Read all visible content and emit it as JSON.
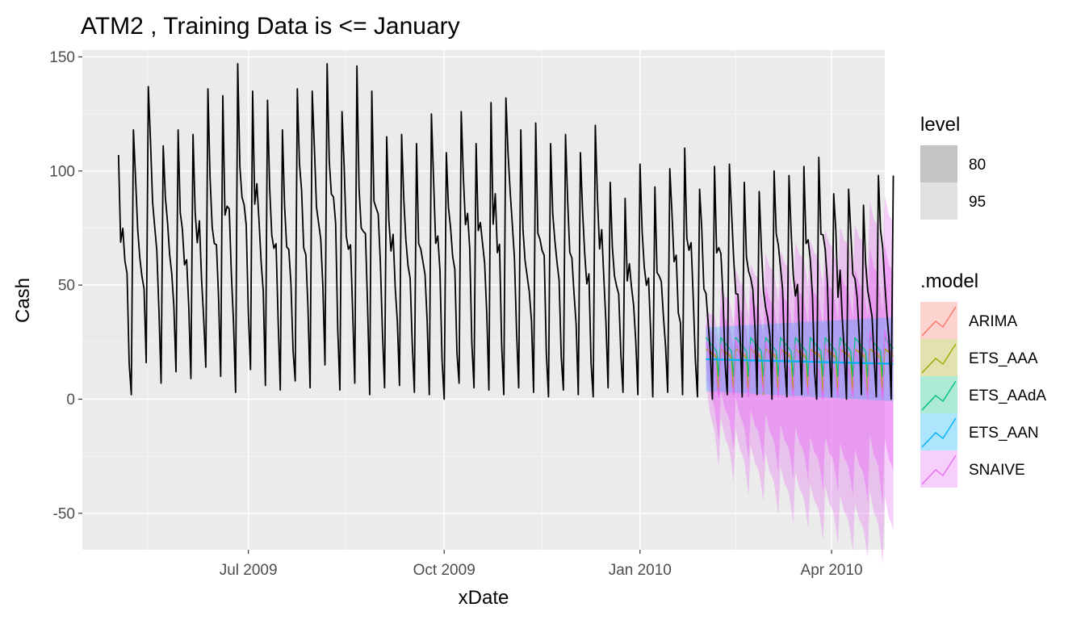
{
  "chart_data": {
    "type": "line",
    "title": "ATM2 , Training Data is <= January",
    "xlabel": "xDate",
    "ylabel": "Cash",
    "x_range": [
      "2009-04-14",
      "2010-04-26"
    ],
    "ylim": [
      -66,
      153
    ],
    "y_ticks": [
      -50,
      0,
      50,
      100,
      150
    ],
    "y_tick_labels": [
      "-50",
      "0",
      "50",
      "100",
      "150"
    ],
    "x_ticks": [
      "2009-07-01",
      "2009-10-01",
      "2010-01-01",
      "2010-04-01"
    ],
    "x_tick_labels": [
      "Jul 2009",
      "Oct 2009",
      "Jan 2010",
      "Apr 2010"
    ],
    "grid": true,
    "background": "#ebebeb",
    "history": {
      "start": "2009-05-01",
      "end": "2010-04-30",
      "weekly_peaks_approx": [
        107,
        118,
        137,
        111,
        118,
        116,
        136,
        133,
        147,
        135,
        131,
        118,
        136,
        135,
        147,
        126,
        146,
        135,
        115,
        116,
        112,
        125,
        108,
        126,
        112,
        130,
        132,
        118,
        121,
        112,
        116,
        108,
        120,
        95,
        88,
        103,
        93,
        101,
        110,
        92,
        102,
        103,
        95,
        91,
        100,
        98,
        102,
        106,
        90,
        92,
        85,
        98
      ],
      "weekly_troughs_approx": [
        2,
        16,
        7,
        12,
        9,
        14,
        10,
        3,
        13,
        6,
        4,
        8,
        5,
        15,
        4,
        7,
        2,
        5,
        6,
        3,
        2,
        0,
        7,
        5,
        4,
        2,
        5,
        3,
        1,
        4,
        2,
        1,
        5,
        3,
        2,
        1,
        3,
        2,
        1,
        0,
        2,
        1,
        2,
        0,
        1,
        2,
        0,
        1,
        0,
        2,
        1,
        0
      ],
      "color": "#000000"
    },
    "forecast": {
      "start": "2010-02-01",
      "end": "2010-04-30",
      "series": [
        {
          "name": "ARIMA",
          "color": "#F8766D",
          "mean_high": 22,
          "mean_low": 10
        },
        {
          "name": "ETS_AAA",
          "color": "#A3A500",
          "mean_high": 22,
          "mean_low": 2
        },
        {
          "name": "ETS_AAdA",
          "color": "#00BF7D",
          "mean_high": 27,
          "mean_low": 10
        },
        {
          "name": "ETS_AAN",
          "color": "#00B0F6",
          "mean_start": 17.5,
          "mean_end": 15.5
        },
        {
          "name": "SNAIVE",
          "color": "#E76BF3",
          "weekly_high": [
            25,
            24,
            26,
            24,
            25,
            23,
            24,
            22,
            24,
            23,
            22,
            30
          ],
          "weekly_low": [
            1,
            2,
            1,
            3,
            1,
            1,
            2,
            0,
            1,
            1,
            0,
            0
          ],
          "band95_low_end": -55,
          "band95_high_end": 80
        }
      ]
    },
    "legend": {
      "placement": "right",
      "level": {
        "title": "level",
        "items": [
          {
            "label": "80",
            "fill": "#c4c4c4"
          },
          {
            "label": "95",
            "fill": "#e0e0e0"
          }
        ]
      },
      "model": {
        "title": ".model",
        "items": [
          "ARIMA",
          "ETS_AAA",
          "ETS_AAdA",
          "ETS_AAN",
          "SNAIVE"
        ]
      }
    }
  }
}
